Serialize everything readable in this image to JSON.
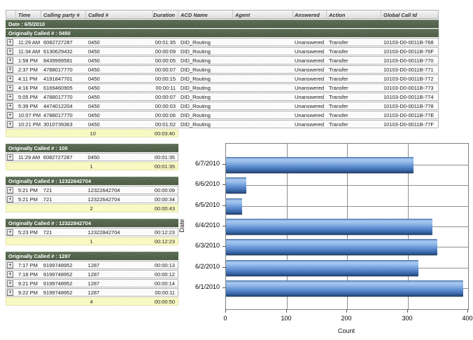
{
  "icons": {
    "expand": "+"
  },
  "colors": {
    "group_band": "#4f614e",
    "summary_bg": "#fcfcc6",
    "header_bg": "#e6e6e6",
    "bar_blue": "#6f9ddd",
    "grid_line": "#8f8f8f"
  },
  "table": {
    "columns": [
      "Time",
      "Calling party #",
      "Called #",
      "Duration",
      "ACD Name",
      "Agent",
      "Answered",
      "Action",
      "Global Call Id"
    ],
    "date_header": "Date : 6/5/2010",
    "groups": [
      {
        "header": "Originally Called # : 0450",
        "full_width": true,
        "rows": [
          {
            "time": "11:29 AM",
            "calling": "6082727287",
            "called": "0450",
            "duration": "00:01:35",
            "acd": "DID_Routing",
            "agent": "",
            "answered": "Unanswered",
            "action": "Transfer",
            "gcid": "10103-D0-0011B-768"
          },
          {
            "time": "11:34 AM",
            "calling": "6130629432",
            "called": "0450",
            "duration": "00:00:09",
            "acd": "DID_Routing",
            "agent": "",
            "answered": "Unanswered",
            "action": "Transfer",
            "gcid": "10103-D0-0011B-76F"
          },
          {
            "time": "1:58 PM",
            "calling": "8439999581",
            "called": "0450",
            "duration": "00:00:05",
            "acd": "DID_Routing",
            "agent": "",
            "answered": "Unanswered",
            "action": "Transfer",
            "gcid": "10103-D0-0011B-770"
          },
          {
            "time": "2:37 PM",
            "calling": "4788017770",
            "called": "0450",
            "duration": "00:00:07",
            "acd": "DID_Routing",
            "agent": "",
            "answered": "Unanswered",
            "action": "Transfer",
            "gcid": "10103-D0-0011B-771"
          },
          {
            "time": "4:11 PM",
            "calling": "4191847701",
            "called": "0450",
            "duration": "00:00:15",
            "acd": "DID_Routing",
            "agent": "",
            "answered": "Unanswered",
            "action": "Transfer",
            "gcid": "10103-D0-0011B-772"
          },
          {
            "time": "4:16 PM",
            "calling": "6169460905",
            "called": "0450",
            "duration": "00:00:11",
            "acd": "DID_Routing",
            "agent": "",
            "answered": "Unanswered",
            "action": "Transfer",
            "gcid": "10103-D0-0011B-773"
          },
          {
            "time": "5:05 PM",
            "calling": "4788017770",
            "called": "0450",
            "duration": "00:00:07",
            "acd": "DID_Routing",
            "agent": "",
            "answered": "Unanswered",
            "action": "Transfer",
            "gcid": "10103-D0-0011B-774"
          },
          {
            "time": "5:39 PM",
            "calling": "4474012204",
            "called": "0450",
            "duration": "00:00:03",
            "acd": "DID_Routing",
            "agent": "",
            "answered": "Unanswered",
            "action": "Transfer",
            "gcid": "10103-D0-0011B-778"
          },
          {
            "time": "10:07 PM",
            "calling": "4788017770",
            "called": "0450",
            "duration": "00:00:06",
            "acd": "DID_Routing",
            "agent": "",
            "answered": "Unanswered",
            "action": "Transfer",
            "gcid": "10103-D0-0011B-77E"
          },
          {
            "time": "10:21 PM",
            "calling": "3010739363",
            "called": "0450",
            "duration": "00:01:02",
            "acd": "DID_Routing",
            "agent": "",
            "answered": "Unanswered",
            "action": "Transfer",
            "gcid": "10103-D0-0011B-77F"
          }
        ],
        "summary": {
          "count": "10",
          "total_duration": "00:03:40"
        }
      },
      {
        "header": "Originally Called # : 100",
        "full_width": false,
        "rows": [
          {
            "time": "11:29 AM",
            "calling": "6082727287",
            "called": "0450",
            "duration": "00:01:35"
          }
        ],
        "summary": {
          "count": "1",
          "total_duration": "00:01:35"
        }
      },
      {
        "header": "Originally Called # : 12322642704",
        "full_width": false,
        "rows": [
          {
            "time": "5:21 PM",
            "calling": "721",
            "called": "12322642704",
            "duration": "00:00:09"
          },
          {
            "time": "5:21 PM",
            "calling": "721",
            "called": "12322642704",
            "duration": "00:00:34"
          }
        ],
        "summary": {
          "count": "2",
          "total_duration": "00:00:43"
        }
      },
      {
        "header": "Originally Called # : 12322842704",
        "full_width": false,
        "rows": [
          {
            "time": "5:23 PM",
            "calling": "721",
            "called": "12322842704",
            "duration": "00:12:23"
          }
        ],
        "summary": {
          "count": "1",
          "total_duration": "00:12:23"
        }
      },
      {
        "header": "Originally Called # : 1287",
        "full_width": false,
        "rows": [
          {
            "time": "7:17 PM",
            "calling": "9199748952",
            "called": "1287",
            "duration": "00:00:13"
          },
          {
            "time": "7:18 PM",
            "calling": "9199748952",
            "called": "1287",
            "duration": "00:00:12"
          },
          {
            "time": "9:21 PM",
            "calling": "9199748952",
            "called": "1287",
            "duration": "00:00:14"
          },
          {
            "time": "9:22 PM",
            "calling": "9199748952",
            "called": "1287",
            "duration": "00:00:11"
          }
        ],
        "summary": {
          "count": "4",
          "total_duration": "00:00:50"
        }
      }
    ]
  },
  "chart_data": {
    "type": "bar",
    "orientation": "horizontal",
    "title": "",
    "categories": [
      "6/7/2010",
      "6/6/2010",
      "6/5/2010",
      "6/4/2010",
      "6/3/2010",
      "6/2/2010",
      "6/1/2010"
    ],
    "values": [
      310,
      33,
      27,
      341,
      349,
      318,
      392
    ],
    "xlabel": "Count",
    "ylabel": "Date",
    "xlim": [
      0,
      400
    ],
    "xticks": [
      0,
      100,
      200,
      300,
      400
    ],
    "grid": true,
    "legend": false,
    "bar_color": "#6f9ddd"
  }
}
